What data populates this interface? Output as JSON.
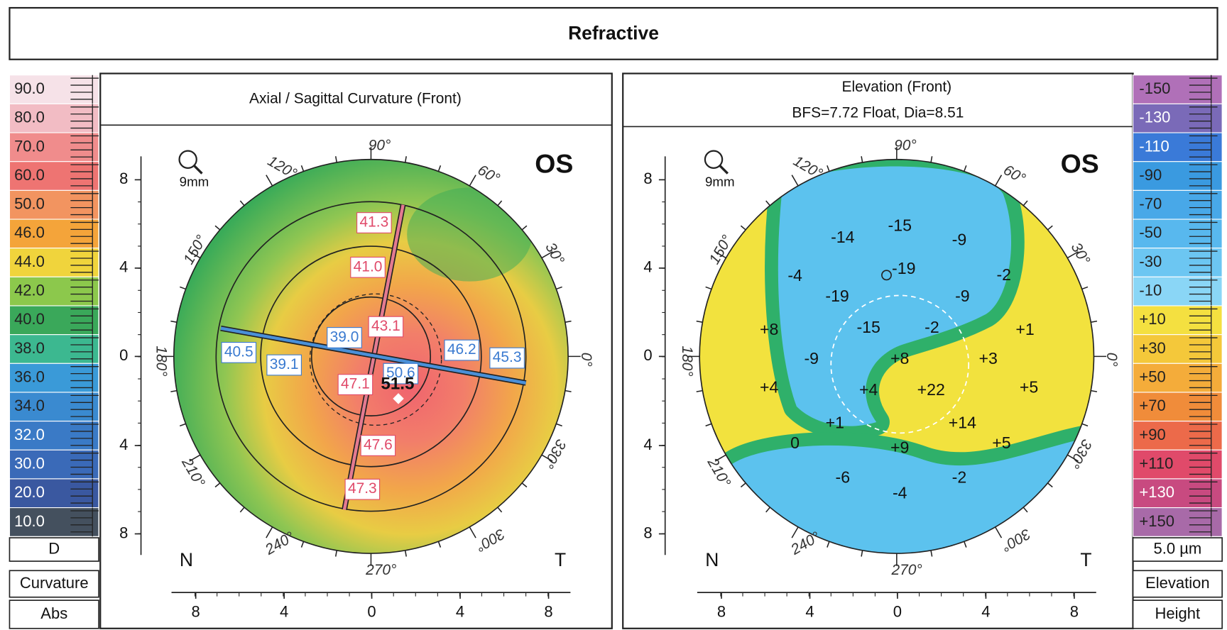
{
  "header": {
    "title": "Refractive"
  },
  "left": {
    "title": "Axial / Sagittal Curvature (Front)",
    "eye": "OS",
    "zoom": "9mm",
    "scale": [
      {
        "label": "90.0",
        "color": "#f6e2e8"
      },
      {
        "label": "80.0",
        "color": "#f2bcc4"
      },
      {
        "label": "70.0",
        "color": "#f08c8c"
      },
      {
        "label": "60.0",
        "color": "#ee7472"
      },
      {
        "label": "50.0",
        "color": "#f29460"
      },
      {
        "label": "46.0",
        "color": "#f4a43a"
      },
      {
        "label": "44.0",
        "color": "#f0d43c"
      },
      {
        "label": "42.0",
        "color": "#8cc84c"
      },
      {
        "label": "40.0",
        "color": "#3aa85a"
      },
      {
        "label": "38.0",
        "color": "#3cb890"
      },
      {
        "label": "36.0",
        "color": "#3a9ad8"
      },
      {
        "label": "34.0",
        "color": "#3a8ad0"
      },
      {
        "label": "32.0",
        "color": "#3a7ac6"
      },
      {
        "label": "30.0",
        "color": "#3a6ab8"
      },
      {
        "label": "20.0",
        "color": "#3a58a0"
      },
      {
        "label": "10.0",
        "color": "#44505e"
      }
    ],
    "unit": "D",
    "mode": "Curvature",
    "kind": "Abs",
    "y_axis_labels": [
      "8",
      "4",
      "0",
      "4",
      "8"
    ],
    "x_axis_labels": [
      "8",
      "4",
      "0",
      "4",
      "8"
    ],
    "nasal": "N",
    "temporal": "T",
    "angles": [
      "90°",
      "60°",
      "30°",
      "0°",
      "330°",
      "300°",
      "270°",
      "240°",
      "210°",
      "180°",
      "150°",
      "120°"
    ],
    "map_values": [
      {
        "text": "41.3",
        "color": "#e04a6a"
      },
      {
        "text": "41.0",
        "color": "#e04a6a"
      },
      {
        "text": "39.0",
        "color": "#3a7ad0"
      },
      {
        "text": "43.1",
        "color": "#e04a6a"
      },
      {
        "text": "40.5",
        "color": "#3a7ad0"
      },
      {
        "text": "39.1",
        "color": "#3a7ad0"
      },
      {
        "text": "46.2",
        "color": "#3a7ad0"
      },
      {
        "text": "45.3",
        "color": "#3a7ad0"
      },
      {
        "text": "50.6",
        "color": "#3a7ad0"
      },
      {
        "text": "47.1",
        "color": "#e04a6a"
      },
      {
        "text": "51.5",
        "color": "#111111"
      },
      {
        "text": "47.6",
        "color": "#e04a6a"
      },
      {
        "text": "47.3",
        "color": "#e04a6a"
      }
    ]
  },
  "right": {
    "title": "Elevation (Front)",
    "subtitle": "BFS=7.72 Float, Dia=8.51",
    "eye": "OS",
    "zoom": "9mm",
    "scale": [
      {
        "label": "-150",
        "color": "#b070b8"
      },
      {
        "label": "-130",
        "color": "#7a6ab8"
      },
      {
        "label": "-110",
        "color": "#3a7ad8"
      },
      {
        "label": "-90",
        "color": "#3a9ae0"
      },
      {
        "label": "-70",
        "color": "#48a8e8"
      },
      {
        "label": "-50",
        "color": "#58b8ee"
      },
      {
        "label": "-30",
        "color": "#6cc6f2"
      },
      {
        "label": "-10",
        "color": "#8ad6f6"
      },
      {
        "label": "+10",
        "color": "#f4e040"
      },
      {
        "label": "+30",
        "color": "#f4c83a"
      },
      {
        "label": "+50",
        "color": "#f4ac3a"
      },
      {
        "label": "+70",
        "color": "#f08c3a"
      },
      {
        "label": "+90",
        "color": "#ec6a4a"
      },
      {
        "label": "+110",
        "color": "#e04a6a"
      },
      {
        "label": "+130",
        "color": "#c84a80"
      },
      {
        "label": "+150",
        "color": "#a86aa8"
      }
    ],
    "unit": "5.0 µm",
    "mode": "Elevation",
    "kind": "Height",
    "y_axis_labels": [
      "8",
      "4",
      "0",
      "4",
      "8"
    ],
    "x_axis_labels": [
      "8",
      "4",
      "0",
      "4",
      "8"
    ],
    "nasal": "N",
    "temporal": "T",
    "angles": [
      "90°",
      "60°",
      "30°",
      "0°",
      "330°",
      "300°",
      "270°",
      "240°",
      "210°",
      "180°",
      "150°",
      "120°"
    ],
    "map_values": [
      "-15",
      "-14",
      "-9",
      "-4",
      "-19",
      "-2",
      "-19",
      "-9",
      "+8",
      "-15",
      "-2",
      "+1",
      "-9",
      "+8",
      "+3",
      "+4",
      "+4",
      "+22",
      "+5",
      "+1",
      "+14",
      "0",
      "+9",
      "+5",
      "-6",
      "-2",
      "-4"
    ]
  }
}
